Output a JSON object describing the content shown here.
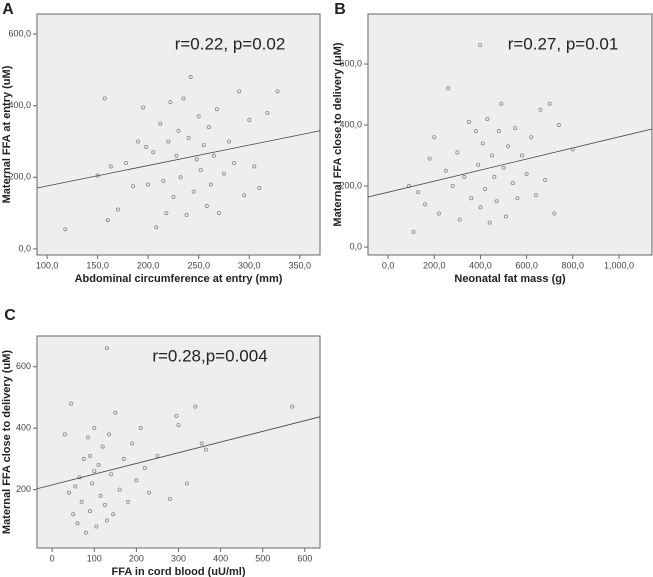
{
  "chart_data": [
    {
      "type": "scatter",
      "panel_label": "A",
      "annotation": "r=0.22, p=0.02",
      "x_label": "Abdominal circumference at entry (mm)",
      "y_label": "Maternal FFA at entry (uM)",
      "color": "#888888",
      "x": [
        118,
        150,
        157,
        160,
        163,
        170,
        178,
        185,
        190,
        195,
        198,
        200,
        205,
        208,
        212,
        215,
        218,
        220,
        222,
        225,
        228,
        230,
        232,
        235,
        238,
        240,
        242,
        245,
        248,
        250,
        252,
        255,
        258,
        260,
        262,
        265,
        268,
        270,
        275,
        280,
        285,
        290,
        295,
        300,
        305,
        310,
        318,
        328
      ],
      "values": [
        55,
        205,
        420,
        80,
        230,
        110,
        240,
        175,
        300,
        395,
        285,
        180,
        270,
        60,
        350,
        190,
        100,
        300,
        410,
        145,
        260,
        330,
        200,
        420,
        95,
        310,
        480,
        160,
        250,
        370,
        220,
        290,
        120,
        340,
        180,
        260,
        390,
        100,
        210,
        300,
        240,
        440,
        150,
        360,
        230,
        170,
        380,
        440
      ],
      "trend_line": {
        "x": [
          90,
          370
        ],
        "y": [
          170,
          330
        ]
      },
      "xlim": [
        90,
        370
      ],
      "ylim": [
        -17,
        656
      ],
      "xticks": [
        {
          "value": 100,
          "label": "100,0"
        },
        {
          "value": 150,
          "label": "150,0"
        },
        {
          "value": 200,
          "label": "200,0"
        },
        {
          "value": 250,
          "label": "250,0"
        },
        {
          "value": 300,
          "label": "300,0"
        },
        {
          "value": 350,
          "label": "350,0"
        }
      ],
      "yticks": [
        {
          "value": 0,
          "label": "0,0"
        },
        {
          "value": 200,
          "label": "200,0"
        },
        {
          "value": 400,
          "label": "400,0"
        },
        {
          "value": 600,
          "label": "600,0"
        }
      ]
    },
    {
      "type": "scatter",
      "panel_label": "B",
      "annotation": "r=0.27, p=0.01",
      "x_label": "Neonatal fat mass (g)",
      "y_label": "Maternal FFA close to delivery (uM)",
      "color": "#888888",
      "x": [
        90,
        110,
        130,
        160,
        180,
        200,
        220,
        250,
        260,
        280,
        300,
        310,
        330,
        350,
        360,
        380,
        390,
        400,
        410,
        420,
        430,
        440,
        450,
        460,
        470,
        480,
        490,
        500,
        510,
        520,
        540,
        550,
        560,
        580,
        600,
        620,
        640,
        660,
        680,
        700,
        720,
        740,
        800,
        398
      ],
      "values": [
        200,
        50,
        180,
        140,
        290,
        360,
        110,
        250,
        520,
        200,
        310,
        90,
        230,
        410,
        160,
        380,
        270,
        130,
        340,
        190,
        420,
        80,
        300,
        230,
        150,
        380,
        470,
        260,
        100,
        330,
        210,
        390,
        160,
        300,
        240,
        360,
        170,
        450,
        220,
        470,
        110,
        400,
        320,
        662
      ],
      "trend_line": {
        "x": [
          -87,
          1143
        ],
        "y": [
          164,
          387
        ]
      },
      "xlim": [
        -87,
        1143
      ],
      "ylim": [
        -26,
        764
      ],
      "xticks": [
        {
          "value": 0,
          "label": "0,0"
        },
        {
          "value": 200,
          "label": "200,0"
        },
        {
          "value": 400,
          "label": "400,0"
        },
        {
          "value": 600,
          "label": "600,0"
        },
        {
          "value": 800,
          "label": "800,0"
        },
        {
          "value": 1000,
          "label": "1,000,0"
        }
      ],
      "yticks": [
        {
          "value": 0,
          "label": "0,0"
        },
        {
          "value": 200,
          "label": "200,0"
        },
        {
          "value": 400,
          "label": "400,0"
        },
        {
          "value": 600,
          "label": "600,0"
        }
      ]
    },
    {
      "type": "scatter",
      "panel_label": "C",
      "annotation": "r=0.28,p=0.004",
      "x_label": "FFA in cord blood (uU/ml)",
      "y_label": "Maternal FFA close to delivery (uM)",
      "color": "#888888",
      "x": [
        30,
        40,
        45,
        50,
        55,
        60,
        65,
        70,
        75,
        80,
        85,
        90,
        95,
        100,
        105,
        110,
        115,
        120,
        125,
        130,
        135,
        140,
        145,
        150,
        160,
        170,
        180,
        190,
        200,
        210,
        220,
        230,
        250,
        280,
        295,
        300,
        320,
        340,
        355,
        365,
        570,
        130,
        100,
        90
      ],
      "values": [
        380,
        190,
        480,
        120,
        210,
        90,
        240,
        160,
        300,
        60,
        370,
        130,
        220,
        400,
        80,
        280,
        180,
        340,
        150,
        660,
        380,
        250,
        120,
        450,
        200,
        300,
        160,
        350,
        230,
        400,
        270,
        190,
        310,
        170,
        440,
        410,
        220,
        470,
        350,
        330,
        470,
        100,
        260,
        310
      ],
      "trend_line": {
        "x": [
          -36,
          636
        ],
        "y": [
          203,
          437
        ]
      },
      "xlim": [
        -36,
        636
      ],
      "ylim": [
        10,
        700
      ],
      "xticks": [
        0,
        100,
        200,
        300,
        400,
        500,
        600
      ],
      "yticks": [
        200,
        400,
        600
      ]
    }
  ]
}
